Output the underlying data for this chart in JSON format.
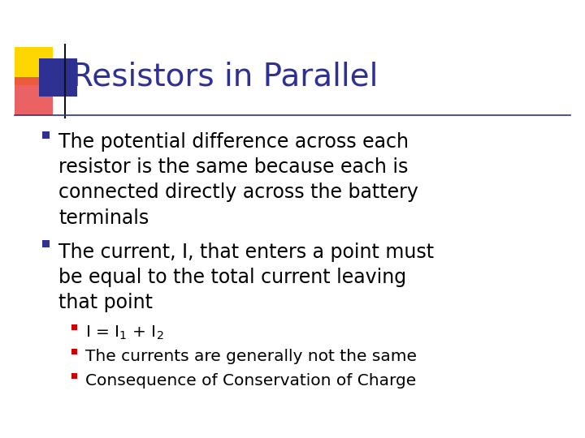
{
  "title": "Resistors in Parallel",
  "title_color": "#2E3192",
  "bg_color": "#FFFFFF",
  "bullet_color": "#2E3192",
  "sub_bullet_color": "#CC0000",
  "text_color": "#000000",
  "bullet1_line1": "The potential difference across each",
  "bullet1_line2": "resistor is the same because each is",
  "bullet1_line3": "connected directly across the battery",
  "bullet1_line4": "terminals",
  "bullet2_line1": "The current, I, that enters a point must",
  "bullet2_line2": "be equal to the total current leaving",
  "bullet2_line3": "that point",
  "sub1": "I = I$_1$ + I$_2$",
  "sub2": "The currents are generally not the same",
  "sub3": "Consequence of Conservation of Charge",
  "decoration_yellow": "#FFD700",
  "decoration_red": "#E8474A",
  "decoration_blue": "#2E3192",
  "line_color": "#2E3192"
}
